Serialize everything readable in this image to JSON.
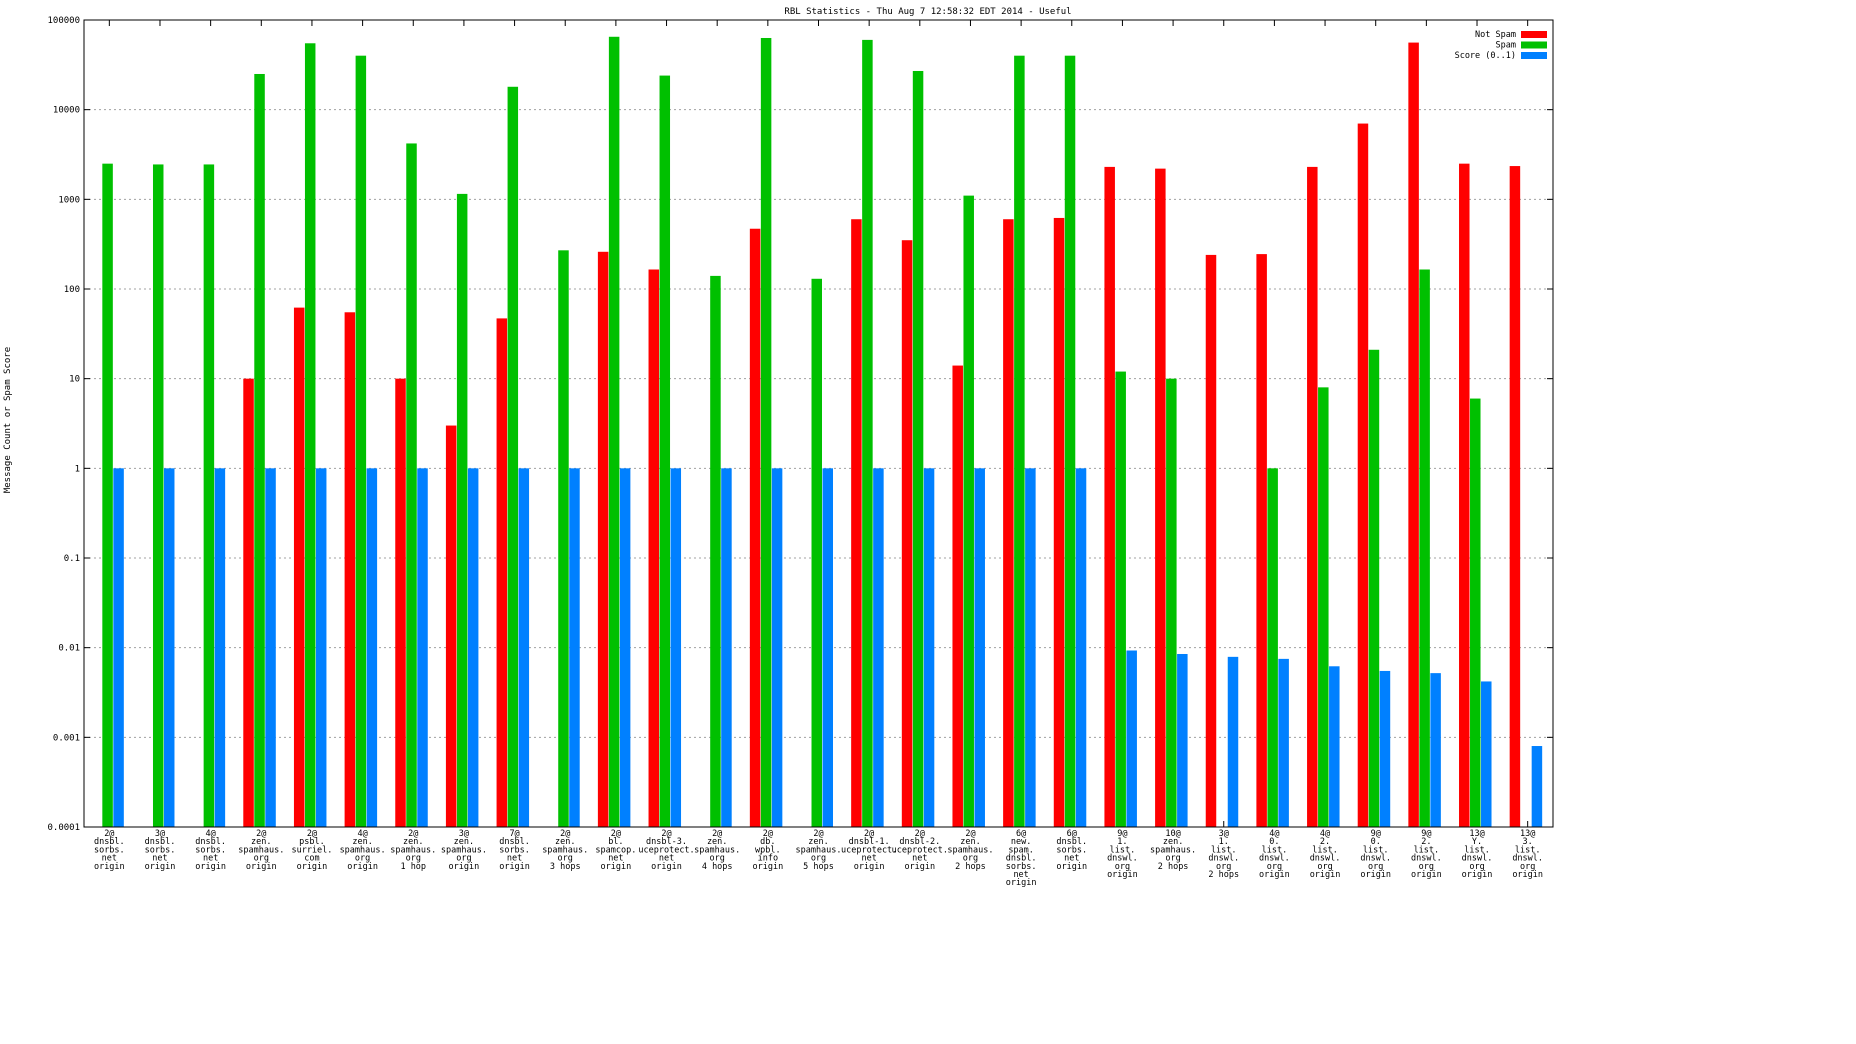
{
  "chart_data": {
    "type": "bar",
    "title": "RBL Statistics - Thu Aug  7 12:58:32 EDT 2014 - Useful",
    "xlabel": "",
    "ylabel": "Message Count or Spam Score",
    "yscale": "log",
    "ylim": [
      0.0001,
      100000
    ],
    "yticks": [
      "0.0001",
      "0.001",
      "0.01",
      "0.1",
      "1",
      "10",
      "100",
      "1000",
      "10000",
      "100000"
    ],
    "grid": true,
    "legend_position": "top-right",
    "categories": [
      [
        "2@",
        "dnsbl.",
        "sorbs.",
        "net",
        "origin"
      ],
      [
        "3@",
        "dnsbl.",
        "sorbs.",
        "net",
        "origin"
      ],
      [
        "4@",
        "dnsbl.",
        "sorbs.",
        "net",
        "origin"
      ],
      [
        "2@",
        "zen.",
        "spamhaus.",
        "org",
        "origin"
      ],
      [
        "2@",
        "psbl.",
        "surriel.",
        "com",
        "origin"
      ],
      [
        "4@",
        "zen.",
        "spamhaus.",
        "org",
        "origin"
      ],
      [
        "2@",
        "zen.",
        "spamhaus.",
        "org",
        "1 hop"
      ],
      [
        "3@",
        "zen.",
        "spamhaus.",
        "org",
        "origin"
      ],
      [
        "7@",
        "dnsbl.",
        "sorbs.",
        "net",
        "origin"
      ],
      [
        "2@",
        "zen.",
        "spamhaus.",
        "org",
        "3 hops"
      ],
      [
        "2@",
        "bl.",
        "spamcop.",
        "net",
        "origin"
      ],
      [
        "2@",
        "dnsbl-3.",
        "uceprotect.",
        "net",
        "origin"
      ],
      [
        "2@",
        "zen.",
        "spamhaus.",
        "org",
        "4 hops"
      ],
      [
        "2@",
        "db.",
        "wpbl.",
        "info",
        "origin"
      ],
      [
        "2@",
        "zen.",
        "spamhaus.",
        "org",
        "5 hops"
      ],
      [
        "2@",
        "dnsbl-1.",
        "uceprotect.",
        "net",
        "origin"
      ],
      [
        "2@",
        "dnsbl-2.",
        "uceprotect.",
        "net",
        "origin"
      ],
      [
        "2@",
        "zen.",
        "spamhaus.",
        "org",
        "2 hops"
      ],
      [
        "6@",
        "new.",
        "spam.",
        "dnsbl.",
        "sorbs.",
        "net",
        "origin"
      ],
      [
        "6@",
        "dnsbl.",
        "sorbs.",
        "net",
        "origin"
      ],
      [
        "9@",
        "1.",
        "list.",
        "dnswl.",
        "org",
        "origin"
      ],
      [
        "10@",
        "zen.",
        "spamhaus.",
        "org",
        "2 hops"
      ],
      [
        "3@",
        "1.",
        "list.",
        "dnswl.",
        "org",
        "2 hops"
      ],
      [
        "4@",
        "0.",
        "list.",
        "dnswl.",
        "org",
        "origin"
      ],
      [
        "4@",
        "2.",
        "list.",
        "dnswl.",
        "org",
        "origin"
      ],
      [
        "9@",
        "0.",
        "list.",
        "dnswl.",
        "org",
        "origin"
      ],
      [
        "9@",
        "2.",
        "list.",
        "dnswl.",
        "org",
        "origin"
      ],
      [
        "13@",
        "Y.",
        "list.",
        "dnswl.",
        "org",
        "origin"
      ],
      [
        "13@",
        "3.",
        "list.",
        "dnswl.",
        "org",
        "origin"
      ]
    ],
    "series": [
      {
        "name": "Not Spam",
        "color": "#ff0000",
        "values": [
          0,
          0,
          0,
          10,
          62,
          55,
          10,
          3,
          47,
          0,
          260,
          165,
          0,
          470,
          0,
          600,
          350,
          14,
          600,
          620,
          2300,
          2200,
          240,
          245,
          2300,
          7000,
          56000,
          2500,
          2350
        ]
      },
      {
        "name": "Spam",
        "color": "#00c000",
        "values": [
          2500,
          2450,
          2450,
          25000,
          55000,
          40000,
          4200,
          1150,
          18000,
          270,
          65000,
          24000,
          140,
          63000,
          130,
          60000,
          27000,
          1100,
          40000,
          40000,
          12,
          10,
          0,
          1,
          8,
          21,
          165,
          6,
          0
        ]
      },
      {
        "name": "Score (0..1)",
        "color": "#0080ff",
        "values": [
          1,
          1,
          1,
          1,
          1,
          1,
          1,
          1,
          1,
          1,
          1,
          1,
          1,
          1,
          1,
          1,
          1,
          1,
          1,
          1,
          0.0093,
          0.0085,
          0.0079,
          0.0075,
          0.0062,
          0.0055,
          0.0052,
          0.0042,
          0.0008
        ]
      }
    ]
  }
}
